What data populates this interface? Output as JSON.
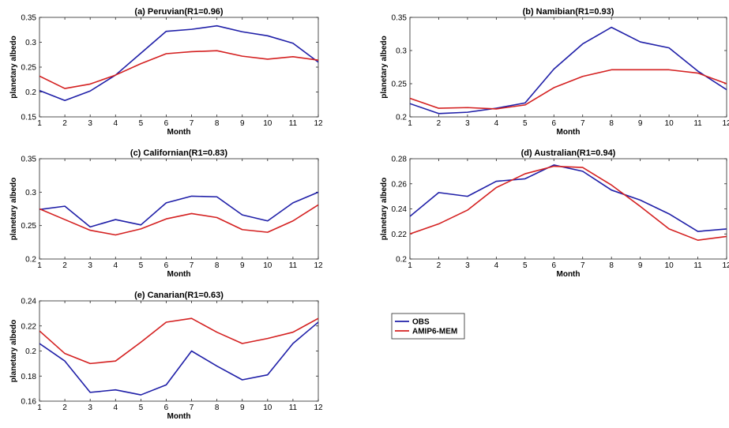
{
  "legend": {
    "entries": [
      {
        "label": "OBS",
        "color": "#1f1fa8"
      },
      {
        "label": "AMIP6-MEM",
        "color": "#d42020"
      }
    ]
  },
  "chart_data": [
    {
      "type": "line",
      "title": "(a) Peruvian(R1=0.96)",
      "xlabel": "Month",
      "ylabel": "planetary albedo",
      "x": [
        1,
        2,
        3,
        4,
        5,
        6,
        7,
        8,
        9,
        10,
        11,
        12
      ],
      "xlim": [
        1,
        12
      ],
      "ylim": [
        0.15,
        0.35
      ],
      "yticks": [
        "0.15",
        "0.2",
        "0.25",
        "0.3",
        "0.35"
      ],
      "yticks_values": [
        0.15,
        0.2,
        0.25,
        0.3,
        0.35
      ],
      "series": [
        {
          "name": "OBS",
          "color": "#1f1fa8",
          "values": [
            0.203,
            0.183,
            0.202,
            0.234,
            0.278,
            0.322,
            0.326,
            0.333,
            0.321,
            0.313,
            0.298,
            0.26
          ]
        },
        {
          "name": "AMIP6-MEM",
          "color": "#d42020",
          "values": [
            0.232,
            0.207,
            0.216,
            0.234,
            0.257,
            0.277,
            0.281,
            0.283,
            0.272,
            0.266,
            0.271,
            0.264
          ]
        }
      ]
    },
    {
      "type": "line",
      "title": "(b) Namibian(R1=0.93)",
      "xlabel": "Month",
      "ylabel": "planetary albedo",
      "x": [
        1,
        2,
        3,
        4,
        5,
        6,
        7,
        8,
        9,
        10,
        11,
        12
      ],
      "xlim": [
        1,
        12
      ],
      "ylim": [
        0.2,
        0.35
      ],
      "yticks": [
        "0.2",
        "0.25",
        "0.3",
        "0.35"
      ],
      "yticks_values": [
        0.2,
        0.25,
        0.3,
        0.35
      ],
      "series": [
        {
          "name": "OBS",
          "color": "#1f1fa8",
          "values": [
            0.22,
            0.205,
            0.207,
            0.213,
            0.221,
            0.272,
            0.31,
            0.335,
            0.313,
            0.304,
            0.269,
            0.241
          ]
        },
        {
          "name": "AMIP6-MEM",
          "color": "#d42020",
          "values": [
            0.228,
            0.213,
            0.214,
            0.212,
            0.218,
            0.244,
            0.261,
            0.271,
            0.271,
            0.271,
            0.266,
            0.25
          ]
        }
      ]
    },
    {
      "type": "line",
      "title": "(c) Californian(R1=0.83)",
      "xlabel": "Month",
      "ylabel": "planetary albedo",
      "x": [
        1,
        2,
        3,
        4,
        5,
        6,
        7,
        8,
        9,
        10,
        11,
        12
      ],
      "xlim": [
        1,
        12
      ],
      "ylim": [
        0.2,
        0.35
      ],
      "yticks": [
        "0.2",
        "0.25",
        "0.3",
        "0.35"
      ],
      "yticks_values": [
        0.2,
        0.25,
        0.3,
        0.35
      ],
      "series": [
        {
          "name": "OBS",
          "color": "#1f1fa8",
          "values": [
            0.274,
            0.279,
            0.248,
            0.259,
            0.251,
            0.284,
            0.294,
            0.293,
            0.266,
            0.257,
            0.284,
            0.3
          ]
        },
        {
          "name": "AMIP6-MEM",
          "color": "#d42020",
          "values": [
            0.275,
            0.259,
            0.243,
            0.236,
            0.245,
            0.26,
            0.268,
            0.262,
            0.244,
            0.24,
            0.257,
            0.281
          ]
        }
      ]
    },
    {
      "type": "line",
      "title": "(d) Australian(R1=0.94)",
      "xlabel": "Month",
      "ylabel": "planetary albedo",
      "x": [
        1,
        2,
        3,
        4,
        5,
        6,
        7,
        8,
        9,
        10,
        11,
        12
      ],
      "xlim": [
        1,
        12
      ],
      "ylim": [
        0.2,
        0.28
      ],
      "yticks": [
        "0.2",
        "0.22",
        "0.24",
        "0.26",
        "0.28"
      ],
      "yticks_values": [
        0.2,
        0.22,
        0.24,
        0.26,
        0.28
      ],
      "series": [
        {
          "name": "OBS",
          "color": "#1f1fa8",
          "values": [
            0.234,
            0.253,
            0.25,
            0.262,
            0.264,
            0.275,
            0.27,
            0.255,
            0.247,
            0.236,
            0.222,
            0.224
          ]
        },
        {
          "name": "AMIP6-MEM",
          "color": "#d42020",
          "values": [
            0.22,
            0.228,
            0.239,
            0.257,
            0.268,
            0.274,
            0.273,
            0.259,
            0.242,
            0.224,
            0.215,
            0.218
          ]
        }
      ]
    },
    {
      "type": "line",
      "title": "(e) Canarian(R1=0.63)",
      "xlabel": "Month",
      "ylabel": "planetary albedo",
      "x": [
        1,
        2,
        3,
        4,
        5,
        6,
        7,
        8,
        9,
        10,
        11,
        12
      ],
      "xlim": [
        1,
        12
      ],
      "ylim": [
        0.16,
        0.24
      ],
      "yticks": [
        "0.16",
        "0.18",
        "0.2",
        "0.22",
        "0.24"
      ],
      "yticks_values": [
        0.16,
        0.18,
        0.2,
        0.22,
        0.24
      ],
      "series": [
        {
          "name": "OBS",
          "color": "#1f1fa8",
          "values": [
            0.206,
            0.192,
            0.167,
            0.169,
            0.165,
            0.173,
            0.2,
            0.188,
            0.177,
            0.181,
            0.206,
            0.223
          ]
        },
        {
          "name": "AMIP6-MEM",
          "color": "#d42020",
          "values": [
            0.216,
            0.198,
            0.19,
            0.192,
            0.207,
            0.223,
            0.226,
            0.215,
            0.206,
            0.21,
            0.215,
            0.226
          ]
        }
      ]
    }
  ]
}
